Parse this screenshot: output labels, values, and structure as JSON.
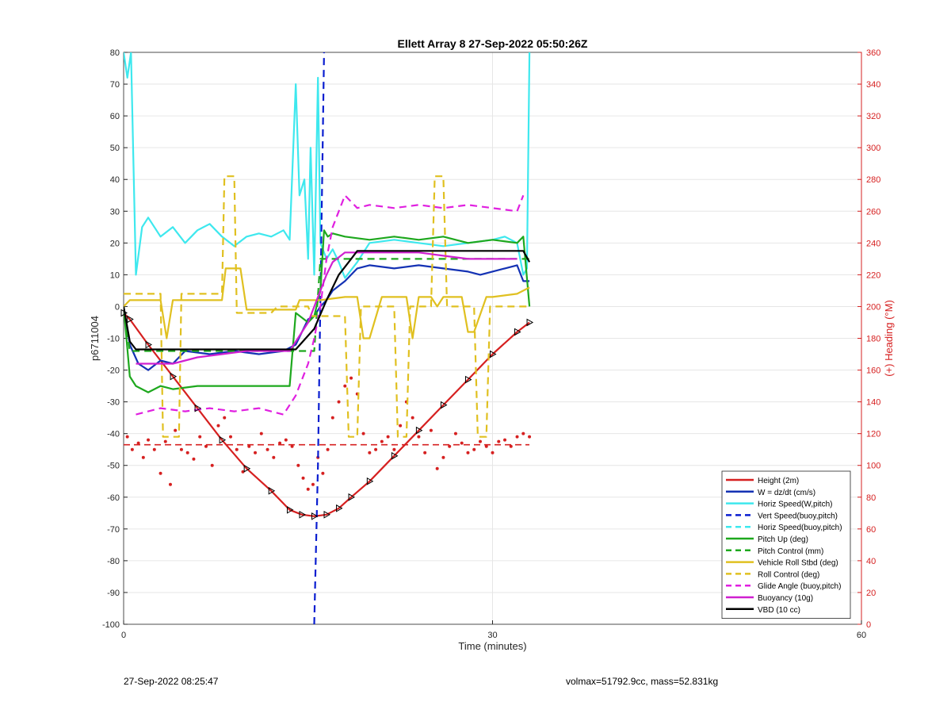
{
  "chart_data": {
    "type": "line",
    "title": "Ellett Array 8 27-Sep-2022 05:50:26Z",
    "xlabel": "Time (minutes)",
    "ylabel": "p6711004",
    "y2label": "(+) Heading (°M)",
    "xlim": [
      0,
      60
    ],
    "ylim": [
      -100,
      80
    ],
    "y2lim": [
      0,
      360
    ],
    "xticks": [
      "0",
      "30",
      "60"
    ],
    "yticks": [
      "80",
      "70",
      "60",
      "50",
      "40",
      "30",
      "20",
      "10",
      "0",
      "-10",
      "-20",
      "-30",
      "-40",
      "-50",
      "-60",
      "-70",
      "-80",
      "-90",
      "-100"
    ],
    "y2ticks": [
      "360",
      "340",
      "320",
      "300",
      "280",
      "260",
      "240",
      "220",
      "200",
      "180",
      "160",
      "140",
      "120",
      "100",
      "80",
      "60",
      "40",
      "20",
      "0"
    ],
    "grid": true,
    "legend_position": "bottom-right",
    "series": [
      {
        "name": "Height (2m)",
        "color": "#d62020",
        "style": "solid",
        "x": [
          0,
          0.5,
          2,
          4,
          6,
          8,
          10,
          12,
          13.5,
          14.5,
          15.5,
          16.5,
          17.5,
          18.5,
          20,
          22,
          24,
          26,
          28,
          30,
          32,
          33
        ],
        "y": [
          -2,
          -4,
          -12,
          -22,
          -32,
          -42,
          -51,
          -58,
          -64,
          -65.5,
          -66,
          -65.5,
          -63.5,
          -60,
          -55,
          -47,
          -39,
          -31,
          -23,
          -15,
          -8,
          -5
        ]
      },
      {
        "name": "W = dz/dt (cm/s)",
        "color": "#1432b4",
        "style": "solid",
        "x": [
          0,
          0.5,
          1.2,
          2,
          3,
          4,
          5,
          7,
          9,
          11,
          13,
          14,
          15,
          15.5,
          16,
          16.5,
          17,
          18,
          19,
          20,
          22,
          24,
          26,
          28,
          29,
          31,
          32,
          32.5,
          33
        ],
        "y": [
          0,
          -12,
          -18,
          -20,
          -17,
          -18,
          -14,
          -15,
          -14,
          -15,
          -14,
          -12,
          -4,
          -3,
          0,
          2,
          5,
          8,
          12,
          13,
          12,
          13,
          12,
          11,
          10,
          12,
          13,
          8,
          8
        ]
      },
      {
        "name": "Horiz Speed(W,pitch)",
        "color": "#3ee8ee",
        "style": "solid",
        "x": [
          0,
          0.3,
          0.6,
          1,
          1.5,
          2,
          3,
          4,
          5,
          6,
          7,
          8,
          9,
          10,
          11,
          12,
          13,
          13.5,
          14,
          14.3,
          14.7,
          15,
          15.2,
          15.5,
          15.8,
          16,
          16.5,
          17,
          17.5,
          18,
          19,
          20,
          22,
          24,
          26,
          28,
          30,
          31,
          32,
          32.5,
          32.8,
          33
        ],
        "y": [
          80,
          72,
          80,
          10,
          25,
          28,
          22,
          25,
          20,
          24,
          26,
          22,
          19,
          22,
          23,
          22,
          24,
          21,
          70,
          35,
          40,
          15,
          50,
          10,
          72,
          20,
          15,
          18,
          14,
          9,
          14,
          20,
          21,
          20,
          19,
          20,
          21,
          22,
          20,
          10,
          12,
          80
        ]
      },
      {
        "name": "Vert Speed(buoy,pitch)",
        "color": "#0a1ed0",
        "style": "dashed",
        "x": [
          15.5,
          15.8,
          16.3
        ],
        "y": [
          -100,
          -50,
          80
        ]
      },
      {
        "name": "Horiz Speed(buoy,pitch)",
        "color": "#3ee8ee",
        "style": "dashed",
        "x": [],
        "y": []
      },
      {
        "name": "Pitch Up (deg)",
        "color": "#1ea81e",
        "style": "solid",
        "x": [
          0,
          0.5,
          1,
          2,
          3,
          4,
          6,
          8,
          10,
          12,
          13.5,
          14,
          15,
          15.5,
          16,
          16.3,
          16.6,
          17,
          18,
          20,
          22,
          24,
          26,
          28,
          30,
          32,
          32.5,
          33
        ],
        "y": [
          0,
          -22,
          -25,
          -27,
          -25,
          -26,
          -25,
          -25,
          -25,
          -25,
          -25,
          -2,
          -5,
          -3,
          5,
          24,
          22,
          23,
          22,
          21,
          22,
          21,
          22,
          20,
          21,
          20,
          22,
          0
        ]
      },
      {
        "name": "Pitch Control (mm)",
        "color": "#1ea81e",
        "style": "dashed",
        "x": [
          0,
          0.5,
          1,
          14,
          15.5,
          16,
          16.3,
          33
        ],
        "y": [
          0,
          -14,
          -14,
          -14,
          -14,
          15,
          15,
          15
        ]
      },
      {
        "name": "Vehicle Roll Stbd (deg)",
        "color": "#e0c020",
        "style": "solid",
        "x": [
          0,
          0.5,
          3,
          3.5,
          4,
          5,
          8,
          8.3,
          9.5,
          10,
          12,
          14,
          14.3,
          16,
          18,
          19,
          19.5,
          20,
          21,
          23,
          23.5,
          24,
          25,
          25.5,
          26,
          27.5,
          28,
          28.5,
          29.5,
          30,
          32,
          33
        ],
        "y": [
          0,
          2,
          2,
          -10,
          2,
          2,
          2,
          12,
          12,
          -1,
          -1,
          -1,
          2,
          2,
          3,
          3,
          -10,
          -10,
          3,
          3,
          -10,
          3,
          3,
          0,
          3,
          3,
          -8,
          -8,
          3,
          3,
          4,
          6
        ]
      },
      {
        "name": "Roll Control (deg)",
        "color": "#e0c020",
        "style": "dashed",
        "x": [
          0,
          3,
          3.2,
          4.5,
          4.7,
          8,
          8.2,
          9,
          9.2,
          12,
          12.5,
          15,
          15.3,
          18,
          18.3,
          19,
          19.3,
          22,
          22.3,
          23,
          23.3,
          25,
          25.3,
          26,
          26.3,
          28.5,
          28.8,
          29.5,
          29.8,
          33
        ],
        "y": [
          4,
          4,
          -41,
          -41,
          4,
          4,
          41,
          41,
          -2,
          -2,
          0,
          0,
          -3,
          -3,
          -41,
          -41,
          0,
          0,
          -41,
          -41,
          0,
          0,
          41,
          41,
          0,
          0,
          -41,
          -41,
          0,
          0
        ]
      },
      {
        "name": "Glide Angle (buoy,pitch)",
        "color": "#e020e0",
        "style": "dashed",
        "x": [
          1,
          3,
          5,
          7,
          9,
          11,
          13,
          14,
          15,
          15.5,
          16,
          16.5,
          17,
          17.5,
          18,
          19,
          20,
          22,
          24,
          26,
          28,
          30,
          32,
          32.5
        ],
        "y": [
          -34,
          -32,
          -33,
          -32,
          -33,
          -32,
          -34,
          -28,
          -18,
          -10,
          0,
          15,
          25,
          30,
          35,
          31,
          32,
          31,
          32,
          31,
          32,
          31,
          30,
          35
        ]
      },
      {
        "name": "Buoyancy (10g)",
        "color": "#d020d0",
        "style": "solid",
        "x": [
          1,
          4,
          6,
          8,
          10,
          12,
          13.5,
          15,
          16,
          16.5,
          17,
          18,
          19,
          22,
          24,
          26,
          28,
          30,
          32
        ],
        "y": [
          -18,
          -18,
          -16,
          -15,
          -14,
          -14,
          -14,
          -5,
          5,
          10,
          14,
          17,
          17,
          17,
          17,
          16,
          15,
          15,
          15
        ]
      },
      {
        "name": "VBD (10 cc)",
        "color": "#000000",
        "style": "solid",
        "x": [
          0,
          0.5,
          1,
          13.5,
          14,
          15.5,
          16.5,
          17.5,
          18.5,
          19,
          32.5,
          33
        ],
        "y": [
          0,
          -11,
          -13.5,
          -13.5,
          -13.5,
          -7,
          2,
          10,
          15,
          17.5,
          17.5,
          14
        ]
      }
    ],
    "heading": {
      "color": "#d62020",
      "mean_line": 113,
      "x": [
        0.3,
        0.7,
        1.2,
        1.6,
        2,
        2.5,
        3,
        3.4,
        3.8,
        4.2,
        4.7,
        5.2,
        5.7,
        6.2,
        6.7,
        7.2,
        7.7,
        8.2,
        8.7,
        9.2,
        9.7,
        10.2,
        10.7,
        11.2,
        11.7,
        12.2,
        12.7,
        13.2,
        13.7,
        14.2,
        14.6,
        15,
        15.4,
        15.8,
        16.2,
        16.6,
        17,
        17.5,
        18,
        18.5,
        19,
        19.5,
        20,
        20.5,
        21,
        21.5,
        22,
        22.5,
        23,
        23.5,
        24,
        24.5,
        25,
        25.5,
        26,
        26.5,
        27,
        27.5,
        28,
        28.5,
        29,
        29.5,
        30,
        30.5,
        31,
        31.5,
        32,
        32.5,
        33
      ],
      "y": [
        118,
        110,
        114,
        105,
        116,
        110,
        95,
        115,
        88,
        122,
        110,
        108,
        104,
        118,
        112,
        100,
        125,
        130,
        118,
        110,
        96,
        112,
        108,
        120,
        110,
        105,
        114,
        116,
        112,
        100,
        92,
        85,
        88,
        105,
        95,
        110,
        130,
        140,
        150,
        155,
        145,
        120,
        108,
        110,
        115,
        118,
        110,
        125,
        140,
        130,
        118,
        108,
        122,
        98,
        105,
        112,
        120,
        114,
        108,
        110,
        115,
        112,
        108,
        115,
        116,
        112,
        118,
        120,
        118
      ]
    },
    "triangle_markers": "Height series"
  },
  "footer": {
    "timestamp": "27-Sep-2022 08:25:47",
    "info": "volmax=51792.9cc, mass=52.831kg"
  }
}
